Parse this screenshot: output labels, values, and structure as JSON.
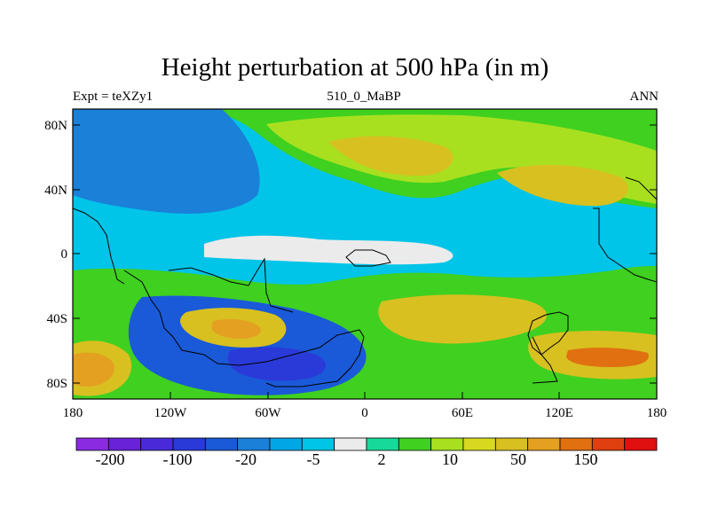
{
  "map": {
    "title": "Height perturbation at 500 hPa (in m)",
    "left_string": "Expt = teXZy1",
    "center_string": "510_0_MaBP",
    "right_string": "ANN",
    "lat_labels": [
      "80N",
      "40N",
      "0",
      "40S",
      "80S"
    ],
    "lon_labels": [
      "180",
      "120W",
      "60W",
      "0",
      "60E",
      "120E",
      "180"
    ],
    "colorbar": {
      "colors": [
        "#8a2be2",
        "#6a22d8",
        "#4a2ad8",
        "#2a3ad8",
        "#1a5ad8",
        "#1a80d8",
        "#00a6e6",
        "#00c4e8",
        "#ebebeb",
        "#17d99a",
        "#40d020",
        "#a8e020",
        "#d8d820",
        "#d8c020",
        "#e4a020",
        "#e07010",
        "#e04010",
        "#e01010"
      ],
      "labels": [
        "-200",
        "-100",
        "-20",
        "-5",
        "2",
        "10",
        "50",
        "150"
      ]
    },
    "fields": [
      {
        "id": "lightblue-tropics",
        "color": "#00c4e8"
      },
      {
        "id": "green-nh",
        "color": "#40d020"
      },
      {
        "id": "yellowgreen-nh",
        "color": "#a8e020"
      },
      {
        "id": "yellow-nh",
        "color": "#d8c020"
      },
      {
        "id": "blue-nw",
        "color": "#1a5ad8"
      },
      {
        "id": "blue-mid",
        "color": "#1a80d8"
      },
      {
        "id": "gray-band",
        "color": "#ebebeb"
      },
      {
        "id": "green-sh",
        "color": "#40d020"
      },
      {
        "id": "yellow-sh",
        "color": "#d8c020"
      },
      {
        "id": "orange-sh",
        "color": "#e4a020"
      },
      {
        "id": "blue-sh",
        "color": "#1a5ad8"
      },
      {
        "id": "darkblue-sh",
        "color": "#2a3ad8"
      },
      {
        "id": "red-se",
        "color": "#e07010"
      }
    ]
  }
}
